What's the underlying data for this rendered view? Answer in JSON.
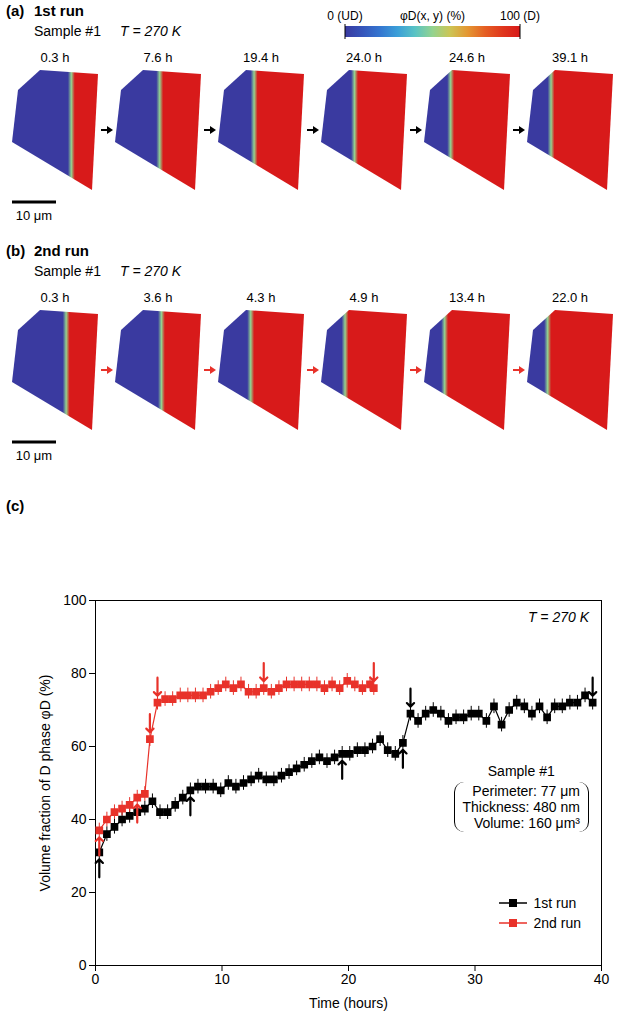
{
  "maps": [
    {
      "panel": "(a)",
      "run": "1st run",
      "sample": "Sample #1",
      "temperature": "T = 270 K",
      "times": [
        "0.3 h",
        "7.6 h",
        "19.4 h",
        "24.0 h",
        "24.6 h",
        "39.1 h"
      ],
      "scale_bar": "10 μm"
    },
    {
      "panel": "(b)",
      "run": "2nd run",
      "sample": "Sample #1",
      "temperature": "T = 270 K",
      "times": [
        "0.3 h",
        "3.6 h",
        "4.3 h",
        "4.9 h",
        "13.4 h",
        "22.0 h"
      ],
      "scale_bar": "10 μm"
    }
  ],
  "colorbar": {
    "label": "φD(x, y) (%)",
    "range": [
      0,
      100
    ],
    "ticks": [
      {
        "value": 0,
        "label": "0 (UD)"
      },
      {
        "value": 100,
        "label": "100 (D)"
      }
    ]
  },
  "chart_data": {
    "type": "line",
    "panel": "(c)",
    "x_label": "Time (hours)",
    "y_label": "Volume fraction of D phase φD (%)",
    "xlim": [
      0,
      40
    ],
    "xticks": [
      0,
      10,
      20,
      30,
      40
    ],
    "ylim": [
      0,
      100
    ],
    "yticks": [
      0,
      20,
      40,
      60,
      80,
      100
    ],
    "legend": "lower right",
    "annotations": [
      "T = 270 K",
      "Sample #1",
      "Perimeter: 77 μm",
      "Thickness: 480 nm",
      "Volume: 160 μm³"
    ],
    "series": [
      {
        "name": "1st run",
        "color": "#000000",
        "marker": "square",
        "error": 2,
        "x": [
          0.3,
          0.9,
          1.5,
          2.1,
          2.7,
          3.3,
          3.9,
          4.5,
          5.1,
          5.7,
          6.3,
          6.9,
          7.5,
          8.1,
          8.7,
          9.3,
          9.9,
          10.5,
          11.1,
          11.7,
          12.3,
          12.9,
          13.5,
          14.1,
          14.7,
          15.3,
          15.9,
          16.5,
          17.1,
          17.7,
          18.3,
          18.9,
          19.5,
          20.1,
          20.7,
          21.3,
          21.9,
          22.5,
          23.1,
          23.7,
          24.3,
          24.9,
          25.5,
          26.1,
          26.7,
          27.3,
          27.9,
          28.5,
          29.1,
          29.7,
          30.3,
          30.9,
          31.5,
          32.1,
          32.7,
          33.3,
          33.9,
          34.5,
          35.1,
          35.7,
          36.3,
          36.9,
          37.5,
          38.1,
          38.7,
          39.3
        ],
        "values": [
          31,
          36,
          38,
          40,
          41,
          42,
          43,
          45,
          42,
          42,
          44,
          46,
          48,
          49,
          49,
          49,
          48,
          50,
          49,
          50,
          51,
          52,
          51,
          51,
          52,
          53,
          54,
          55,
          56,
          57,
          56,
          57,
          58,
          58,
          59,
          59,
          60,
          62,
          59,
          58,
          61,
          69,
          67,
          69,
          70,
          69,
          67,
          68,
          68,
          69,
          69,
          67,
          71,
          66,
          70,
          72,
          71,
          69,
          71,
          68,
          71,
          71,
          72,
          72,
          74,
          72
        ],
        "arrows": [
          {
            "x": 0.3,
            "y": 31,
            "direction": "up"
          },
          {
            "x": 7.5,
            "y": 48,
            "direction": "up"
          },
          {
            "x": 19.5,
            "y": 58,
            "direction": "up"
          },
          {
            "x": 24.3,
            "y": 61,
            "direction": "up"
          },
          {
            "x": 24.9,
            "y": 69,
            "direction": "down"
          },
          {
            "x": 39.3,
            "y": 72,
            "direction": "down"
          }
        ]
      },
      {
        "name": "2nd run",
        "color": "#e8322a",
        "marker": "square",
        "error": 2,
        "x": [
          0.3,
          0.9,
          1.5,
          2.1,
          2.7,
          3.3,
          3.9,
          4.3,
          4.9,
          5.5,
          6.1,
          6.7,
          7.3,
          7.9,
          8.5,
          9.1,
          9.7,
          10.3,
          10.9,
          11.5,
          12.1,
          12.7,
          13.3,
          13.9,
          14.5,
          15.1,
          15.7,
          16.3,
          16.9,
          17.5,
          18.1,
          18.7,
          19.3,
          19.9,
          20.5,
          21.1,
          21.7,
          22.0
        ],
        "values": [
          37,
          40,
          42,
          43,
          44,
          46,
          47,
          62,
          72,
          73,
          73,
          74,
          74,
          74,
          74,
          75,
          76,
          77,
          76,
          77,
          75,
          75,
          76,
          75,
          76,
          77,
          77,
          77,
          77,
          77,
          76,
          77,
          76,
          78,
          77,
          76,
          77,
          76
        ],
        "arrows": [
          {
            "x": 0.3,
            "y": 37,
            "direction": "up"
          },
          {
            "x": 3.3,
            "y": 46,
            "direction": "up"
          },
          {
            "x": 4.3,
            "y": 62,
            "direction": "down"
          },
          {
            "x": 4.9,
            "y": 72,
            "direction": "down"
          },
          {
            "x": 13.3,
            "y": 76,
            "direction": "down"
          },
          {
            "x": 22.0,
            "y": 76,
            "direction": "down"
          }
        ]
      }
    ]
  }
}
